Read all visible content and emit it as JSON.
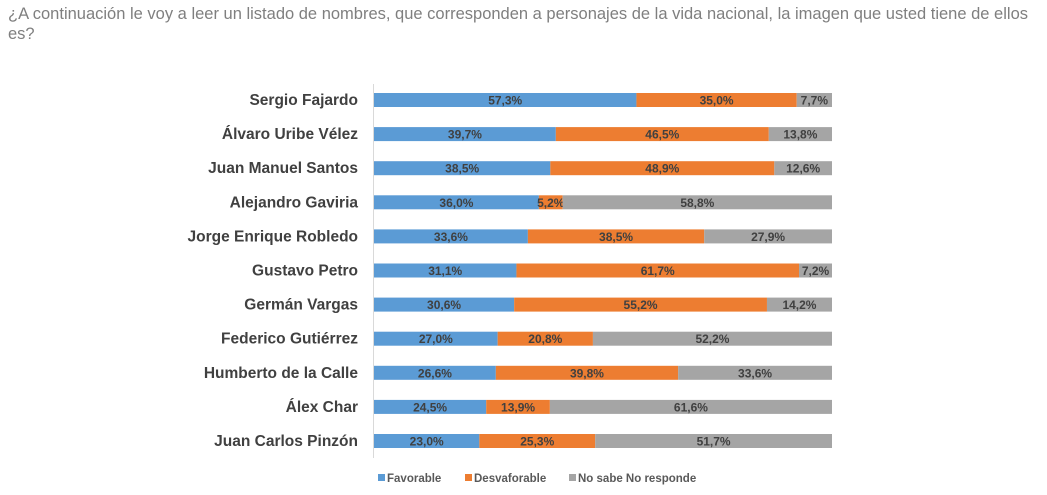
{
  "chart_data": {
    "type": "bar",
    "orientation": "horizontal",
    "stacked": true,
    "title": "¿A continuación le voy a leer un listado de nombres, que corresponden a personajes de la vida nacional, la imagen que usted tiene de ellos es?",
    "categories": [
      "Sergio Fajardo",
      "Álvaro Uribe Vélez",
      "Juan Manuel Santos",
      "Alejandro Gaviria",
      "Jorge Enrique Robledo",
      "Gustavo Petro",
      "Germán Vargas",
      "Federico Gutiérrez",
      "Humberto de la Calle",
      "Álex Char",
      "Juan Carlos Pinzón"
    ],
    "series": [
      {
        "name": "Favorable",
        "color": "#5b9bd5",
        "values": [
          57.3,
          39.7,
          38.5,
          36.0,
          33.6,
          31.1,
          30.6,
          27.0,
          26.6,
          24.5,
          23.0
        ]
      },
      {
        "name": "Desvaforable",
        "color": "#ed7d31",
        "values": [
          35.0,
          46.5,
          48.9,
          5.2,
          38.5,
          61.7,
          55.2,
          20.8,
          39.8,
          13.9,
          25.3
        ]
      },
      {
        "name": "No sabe No responde",
        "color": "#a5a5a5",
        "values": [
          7.7,
          13.8,
          12.6,
          58.8,
          27.9,
          7.2,
          14.2,
          52.2,
          33.6,
          61.6,
          51.7
        ]
      }
    ],
    "xlim": [
      0,
      100
    ],
    "grid": false,
    "legend_position": "bottom",
    "value_format": "decimal comma with %"
  }
}
